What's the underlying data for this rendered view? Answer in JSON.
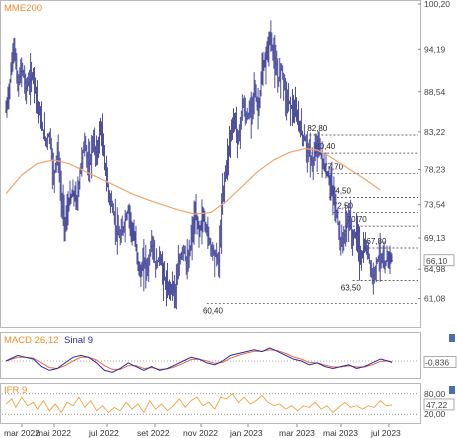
{
  "chart_data": [
    {
      "type": "line",
      "panel": "price",
      "title": "MME200",
      "y_ticks": [
        "100,20",
        "94,19",
        "88,54",
        "83,22",
        "78,23",
        "73,54",
        "69,13",
        "64,98",
        "61,08"
      ],
      "ylim": [
        58.5,
        100.2
      ],
      "current_value": "66,10",
      "x_labels": [
        "mar 2022",
        "mai 2022",
        "jul 2022",
        "set 2022",
        "nov 2022",
        "jan 2023",
        "mar 2023",
        "mai 2023",
        "jul 2023"
      ],
      "support_resistance": [
        {
          "label": "82,80",
          "value": 82.8
        },
        {
          "label": "80,40",
          "value": 80.4
        },
        {
          "label": "77,70",
          "value": 77.7
        },
        {
          "label": "74,50",
          "value": 74.5
        },
        {
          "label": "72,50",
          "value": 72.5
        },
        {
          "label": "70,70",
          "value": 70.7
        },
        {
          "label": "67,80",
          "value": 67.8
        },
        {
          "label": "63,50",
          "value": 63.5
        },
        {
          "label": "60,40",
          "value": 60.4
        }
      ],
      "price_path": [
        [
          0,
          86
        ],
        [
          2,
          90
        ],
        [
          4,
          95
        ],
        [
          6,
          89
        ],
        [
          8,
          92
        ],
        [
          10,
          89
        ],
        [
          12,
          90
        ],
        [
          14,
          91
        ],
        [
          16,
          87
        ],
        [
          18,
          84
        ],
        [
          20,
          82
        ],
        [
          22,
          83
        ],
        [
          24,
          77
        ],
        [
          26,
          81
        ],
        [
          28,
          74
        ],
        [
          30,
          71
        ],
        [
          32,
          74
        ],
        [
          34,
          75
        ],
        [
          36,
          74
        ],
        [
          38,
          79
        ],
        [
          40,
          82
        ],
        [
          42,
          78
        ],
        [
          44,
          82
        ],
        [
          46,
          80
        ],
        [
          48,
          84
        ],
        [
          50,
          79
        ],
        [
          52,
          75
        ],
        [
          54,
          73
        ],
        [
          56,
          70
        ],
        [
          58,
          69
        ],
        [
          60,
          71
        ],
        [
          62,
          73
        ],
        [
          64,
          70
        ],
        [
          66,
          68
        ],
        [
          68,
          64
        ],
        [
          70,
          66
        ],
        [
          72,
          65
        ],
        [
          74,
          69
        ],
        [
          76,
          65
        ],
        [
          78,
          67
        ],
        [
          80,
          64
        ],
        [
          82,
          62
        ],
        [
          84,
          63
        ],
        [
          86,
          62
        ],
        [
          88,
          66
        ],
        [
          90,
          68
        ],
        [
          92,
          65
        ],
        [
          94,
          69
        ],
        [
          96,
          72
        ],
        [
          98,
          70
        ],
        [
          100,
          72
        ],
        [
          102,
          70
        ],
        [
          104,
          68
        ],
        [
          106,
          67
        ],
        [
          108,
          66
        ],
        [
          110,
          75
        ],
        [
          112,
          79
        ],
        [
          114,
          83
        ],
        [
          116,
          85
        ],
        [
          118,
          82
        ],
        [
          120,
          87
        ],
        [
          122,
          85
        ],
        [
          124,
          86
        ],
        [
          126,
          89
        ],
        [
          128,
          86
        ],
        [
          130,
          91
        ],
        [
          132,
          93
        ],
        [
          134,
          96
        ],
        [
          136,
          93
        ],
        [
          138,
          90
        ],
        [
          140,
          92
        ],
        [
          142,
          88
        ],
        [
          144,
          87
        ],
        [
          146,
          86
        ],
        [
          148,
          85
        ],
        [
          150,
          83
        ],
        [
          152,
          82
        ],
        [
          154,
          80
        ],
        [
          156,
          79
        ],
        [
          158,
          82
        ],
        [
          160,
          80
        ],
        [
          162,
          78
        ],
        [
          164,
          77
        ],
        [
          166,
          75
        ],
        [
          168,
          72
        ],
        [
          170,
          68
        ],
        [
          172,
          70
        ],
        [
          174,
          72
        ],
        [
          176,
          69
        ],
        [
          178,
          70
        ],
        [
          180,
          66
        ],
        [
          182,
          68
        ],
        [
          184,
          67
        ],
        [
          186,
          63.5
        ],
        [
          188,
          66
        ],
        [
          190,
          67
        ],
        [
          192,
          65
        ],
        [
          194,
          67
        ],
        [
          196,
          66.1
        ]
      ],
      "mme200_path": [
        [
          0,
          75
        ],
        [
          8,
          77.5
        ],
        [
          16,
          79
        ],
        [
          24,
          79.5
        ],
        [
          32,
          79
        ],
        [
          40,
          78
        ],
        [
          48,
          77
        ],
        [
          56,
          76
        ],
        [
          64,
          75
        ],
        [
          72,
          74.2
        ],
        [
          80,
          73.5
        ],
        [
          88,
          72.8
        ],
        [
          96,
          72.3
        ],
        [
          104,
          72.5
        ],
        [
          112,
          74
        ],
        [
          120,
          76
        ],
        [
          128,
          78
        ],
        [
          136,
          79.5
        ],
        [
          144,
          80.5
        ],
        [
          152,
          81
        ],
        [
          158,
          80.8
        ],
        [
          164,
          80
        ],
        [
          170,
          79
        ],
        [
          176,
          78
        ],
        [
          182,
          77
        ],
        [
          190,
          75.5
        ]
      ]
    },
    {
      "type": "line",
      "panel": "macd",
      "title": "MACD 26,12",
      "signal_label": "Sinal 9",
      "current_value": "-0,836",
      "macd_path": [
        [
          0,
          0
        ],
        [
          6,
          3
        ],
        [
          10,
          2
        ],
        [
          14,
          1
        ],
        [
          18,
          -3
        ],
        [
          22,
          -5
        ],
        [
          26,
          -4
        ],
        [
          30,
          -1
        ],
        [
          34,
          2
        ],
        [
          38,
          3
        ],
        [
          42,
          2
        ],
        [
          46,
          -1
        ],
        [
          50,
          -5
        ],
        [
          54,
          -6
        ],
        [
          58,
          -4
        ],
        [
          62,
          -1
        ],
        [
          66,
          -3
        ],
        [
          70,
          -5
        ],
        [
          74,
          -3
        ],
        [
          78,
          -5
        ],
        [
          82,
          -4
        ],
        [
          86,
          -2
        ],
        [
          90,
          0
        ],
        [
          94,
          2
        ],
        [
          98,
          1
        ],
        [
          102,
          -1
        ],
        [
          106,
          -2
        ],
        [
          110,
          0
        ],
        [
          114,
          3
        ],
        [
          118,
          4
        ],
        [
          122,
          5
        ],
        [
          126,
          6
        ],
        [
          130,
          5
        ],
        [
          134,
          7
        ],
        [
          138,
          5
        ],
        [
          142,
          3
        ],
        [
          146,
          1
        ],
        [
          150,
          0
        ],
        [
          154,
          -2
        ],
        [
          158,
          -1
        ],
        [
          162,
          -3
        ],
        [
          166,
          -4
        ],
        [
          170,
          -3
        ],
        [
          174,
          -2
        ],
        [
          178,
          -4
        ],
        [
          182,
          -3
        ],
        [
          186,
          -1
        ],
        [
          190,
          1
        ],
        [
          194,
          0
        ],
        [
          196,
          -0.8
        ]
      ],
      "signal_path": [
        [
          0,
          0
        ],
        [
          6,
          2
        ],
        [
          10,
          2
        ],
        [
          14,
          1.5
        ],
        [
          18,
          -1
        ],
        [
          22,
          -3.5
        ],
        [
          26,
          -4
        ],
        [
          30,
          -2.5
        ],
        [
          34,
          0
        ],
        [
          38,
          2
        ],
        [
          42,
          2
        ],
        [
          46,
          0.5
        ],
        [
          50,
          -2.5
        ],
        [
          54,
          -4.5
        ],
        [
          58,
          -4.5
        ],
        [
          62,
          -2.5
        ],
        [
          66,
          -2.5
        ],
        [
          70,
          -4
        ],
        [
          74,
          -3.5
        ],
        [
          78,
          -4.5
        ],
        [
          82,
          -4.2
        ],
        [
          86,
          -3
        ],
        [
          90,
          -1.2
        ],
        [
          94,
          0.8
        ],
        [
          98,
          1
        ],
        [
          102,
          0
        ],
        [
          106,
          -1.2
        ],
        [
          110,
          -0.8
        ],
        [
          114,
          1.5
        ],
        [
          118,
          3
        ],
        [
          122,
          4.2
        ],
        [
          126,
          5.2
        ],
        [
          130,
          5.2
        ],
        [
          134,
          6
        ],
        [
          138,
          5.5
        ],
        [
          142,
          4
        ],
        [
          146,
          2.2
        ],
        [
          150,
          1
        ],
        [
          154,
          -0.8
        ],
        [
          158,
          -1
        ],
        [
          162,
          -2.2
        ],
        [
          166,
          -3.2
        ],
        [
          170,
          -3.2
        ],
        [
          174,
          -2.5
        ],
        [
          178,
          -3.2
        ],
        [
          182,
          -3.2
        ],
        [
          186,
          -2
        ],
        [
          190,
          -0.2
        ],
        [
          194,
          0
        ],
        [
          196,
          -0.5
        ]
      ]
    },
    {
      "type": "line",
      "panel": "rsi",
      "title": "IFR 9",
      "y_ticks": [
        "80,00",
        "20,00"
      ],
      "ylim": [
        0,
        100
      ],
      "current_value": "47,22",
      "rsi_path": [
        [
          0,
          50
        ],
        [
          3,
          65
        ],
        [
          5,
          40
        ],
        [
          8,
          70
        ],
        [
          11,
          45
        ],
        [
          14,
          55
        ],
        [
          16,
          35
        ],
        [
          19,
          60
        ],
        [
          22,
          30
        ],
        [
          25,
          50
        ],
        [
          28,
          25
        ],
        [
          31,
          55
        ],
        [
          34,
          45
        ],
        [
          37,
          70
        ],
        [
          40,
          40
        ],
        [
          43,
          60
        ],
        [
          46,
          30
        ],
        [
          49,
          45
        ],
        [
          52,
          25
        ],
        [
          55,
          40
        ],
        [
          58,
          30
        ],
        [
          61,
          55
        ],
        [
          64,
          35
        ],
        [
          67,
          50
        ],
        [
          70,
          25
        ],
        [
          73,
          60
        ],
        [
          76,
          35
        ],
        [
          79,
          50
        ],
        [
          82,
          30
        ],
        [
          85,
          45
        ],
        [
          88,
          65
        ],
        [
          91,
          40
        ],
        [
          94,
          60
        ],
        [
          97,
          70
        ],
        [
          100,
          45
        ],
        [
          103,
          55
        ],
        [
          106,
          35
        ],
        [
          109,
          70
        ],
        [
          112,
          65
        ],
        [
          115,
          80
        ],
        [
          118,
          55
        ],
        [
          121,
          70
        ],
        [
          124,
          50
        ],
        [
          127,
          60
        ],
        [
          130,
          75
        ],
        [
          133,
          55
        ],
        [
          136,
          45
        ],
        [
          139,
          50
        ],
        [
          142,
          35
        ],
        [
          145,
          45
        ],
        [
          148,
          30
        ],
        [
          151,
          45
        ],
        [
          154,
          40
        ],
        [
          157,
          55
        ],
        [
          160,
          35
        ],
        [
          163,
          45
        ],
        [
          166,
          25
        ],
        [
          169,
          40
        ],
        [
          172,
          55
        ],
        [
          175,
          40
        ],
        [
          178,
          45
        ],
        [
          181,
          35
        ],
        [
          184,
          45
        ],
        [
          187,
          40
        ],
        [
          190,
          60
        ],
        [
          193,
          45
        ],
        [
          196,
          47.2
        ]
      ]
    }
  ]
}
